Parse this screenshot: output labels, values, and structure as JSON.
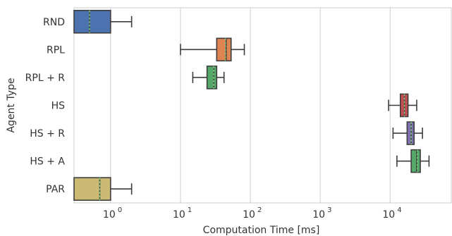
{
  "chart_data": {
    "type": "boxplot",
    "orientation": "horizontal",
    "xlabel": "Computation Time [ms]",
    "ylabel": "Agent Type",
    "x_scale": "log",
    "xlim": [
      0.3,
      75000
    ],
    "grid": "vertical",
    "x_ticks": [
      {
        "value": 1,
        "base": "10",
        "exp": "0"
      },
      {
        "value": 10,
        "base": "10",
        "exp": "1"
      },
      {
        "value": 100,
        "base": "10",
        "exp": "2"
      },
      {
        "value": 1000,
        "base": "10",
        "exp": "3"
      },
      {
        "value": 10000,
        "base": "10",
        "exp": "4"
      }
    ],
    "categories": [
      "RND",
      "RPL",
      "RPL + R",
      "HS",
      "HS + R",
      "HS + A",
      "PAR"
    ],
    "boxes": [
      {
        "label": "RND",
        "color": "#4c72b0",
        "whisker_low": 0.3,
        "q1": 0.3,
        "median": 0.5,
        "mean": 0.5,
        "q3": 1.0,
        "whisker_high": 2.0
      },
      {
        "label": "RPL",
        "color": "#dd8452",
        "whisker_low": 10,
        "q1": 33,
        "median": 45,
        "mean": 44,
        "q3": 53,
        "whisker_high": 82
      },
      {
        "label": "RPL + R",
        "color": "#55a868",
        "whisker_low": 15,
        "q1": 24,
        "median": 30,
        "mean": 30,
        "q3": 33,
        "whisker_high": 42
      },
      {
        "label": "HS",
        "color": "#c44e52",
        "whisker_low": 9500,
        "q1": 14000,
        "median": 16000,
        "mean": 16000,
        "q3": 18000,
        "whisker_high": 24000
      },
      {
        "label": "HS + R",
        "color": "#8172b3",
        "whisker_low": 11000,
        "q1": 17500,
        "median": 20000,
        "mean": 20000,
        "q3": 22000,
        "whisker_high": 29000
      },
      {
        "label": "HS + A",
        "color": "#55a868",
        "whisker_low": 12500,
        "q1": 20000,
        "median": 24000,
        "mean": 24500,
        "q3": 27000,
        "whisker_high": 36000
      },
      {
        "label": "PAR",
        "color": "#ccb974",
        "whisker_low": 0.3,
        "q1": 0.3,
        "median": 0.7,
        "mean": 0.7,
        "q3": 1.0,
        "whisker_high": 2.0
      }
    ]
  }
}
